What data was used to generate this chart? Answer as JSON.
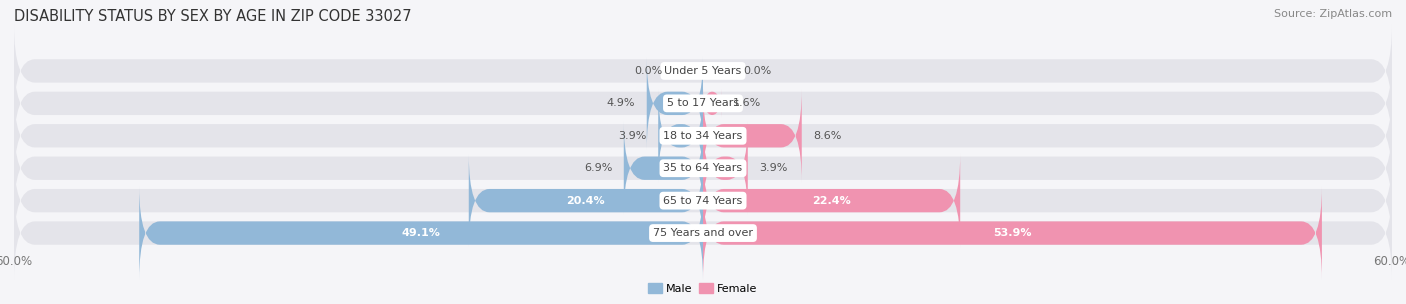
{
  "title": "DISABILITY STATUS BY SEX BY AGE IN ZIP CODE 33027",
  "source": "Source: ZipAtlas.com",
  "categories": [
    "Under 5 Years",
    "5 to 17 Years",
    "18 to 34 Years",
    "35 to 64 Years",
    "65 to 74 Years",
    "75 Years and over"
  ],
  "male_values": [
    0.0,
    4.9,
    3.9,
    6.9,
    20.4,
    49.1
  ],
  "female_values": [
    0.0,
    1.6,
    8.6,
    3.9,
    22.4,
    53.9
  ],
  "axis_max": 60.0,
  "male_color": "#92b8d8",
  "female_color": "#f093b0",
  "bar_bg_color": "#e4e4ea",
  "bar_height": 0.72,
  "bar_gap": 0.28,
  "male_label": "Male",
  "female_label": "Female",
  "title_fontsize": 10.5,
  "label_fontsize": 8.0,
  "value_fontsize": 8.0,
  "tick_fontsize": 8.5,
  "source_fontsize": 8.0,
  "bg_color": "#f5f5f8"
}
